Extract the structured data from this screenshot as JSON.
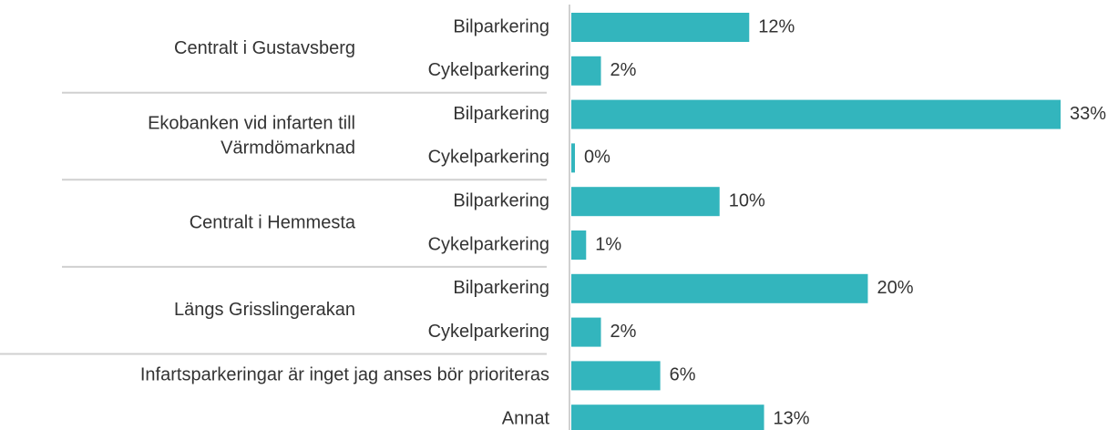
{
  "chart_data": {
    "type": "bar",
    "orientation": "horizontal",
    "color": "#33b5bd",
    "xlim": [
      0,
      33
    ],
    "groups": [
      {
        "label": [
          "Centralt i Gustavsberg"
        ],
        "categories": [
          "Bilparkering",
          "Cykelparkering"
        ],
        "values": [
          12,
          2
        ],
        "value_labels": [
          "12%",
          "2%"
        ]
      },
      {
        "label": [
          "Ekobanken vid infarten till",
          "Värmdömarknad"
        ],
        "categories": [
          "Bilparkering",
          "Cykelparkering"
        ],
        "values": [
          33,
          0
        ],
        "value_labels": [
          "33%",
          "0%"
        ]
      },
      {
        "label": [
          "Centralt i Hemmesta"
        ],
        "categories": [
          "Bilparkering",
          "Cykelparkering"
        ],
        "values": [
          10,
          1
        ],
        "value_labels": [
          "10%",
          "1%"
        ]
      },
      {
        "label": [
          "Längs Grisslingerakan"
        ],
        "categories": [
          "Bilparkering",
          "Cykelparkering"
        ],
        "values": [
          20,
          2
        ],
        "value_labels": [
          "20%",
          "2%"
        ]
      },
      {
        "categories": [
          "Infartsparkeringar är inget jag anses bör prioriteras"
        ],
        "values": [
          6
        ],
        "value_labels": [
          "6%"
        ]
      },
      {
        "categories": [
          "Annat"
        ],
        "values": [
          13
        ],
        "value_labels": [
          "13%"
        ]
      }
    ]
  }
}
